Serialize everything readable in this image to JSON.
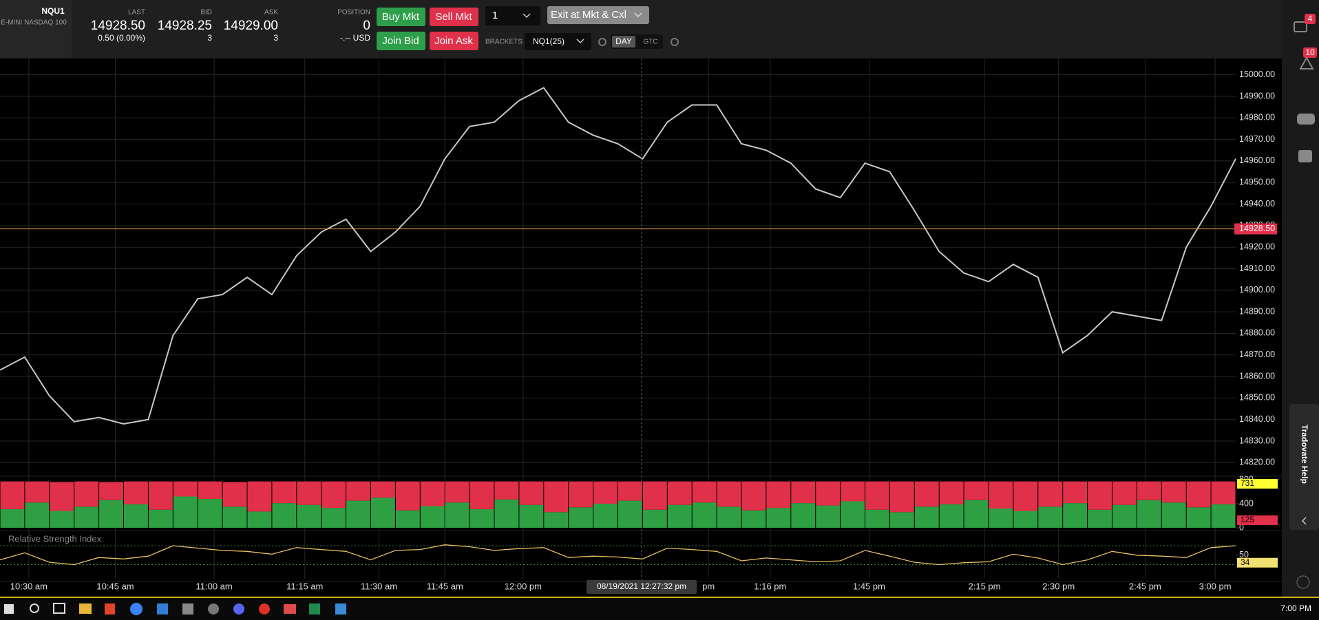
{
  "toolbar": {
    "symbol": "NQU1",
    "description": "E-MINI NASDAQ 100",
    "last_label": "LAST",
    "last": "14928.50",
    "change": "0.50 (0.00%)",
    "bid_label": "BID",
    "bid": "14928.25",
    "bid_size": "3",
    "ask_label": "ASK",
    "ask": "14929.00",
    "ask_size": "3",
    "position_label": "POSITION",
    "position": "0",
    "position_pnl": "-.-- USD",
    "buy_mkt": "Buy Mkt",
    "sell_mkt": "Sell Mkt",
    "join_bid": "Join Bid",
    "join_ask": "Join Ask",
    "quantity": "1",
    "exit": "Exit at Mkt & Cxl",
    "brackets_label": "BRACKETS",
    "brackets": "NQ1(25)",
    "day": "DAY",
    "gtc": "GTC"
  },
  "sidebar": {
    "messages_badge": "4",
    "alerts_badge": "10",
    "help": "Tradovate Help"
  },
  "crosshair_time": "08/19/2021 12:27:32 pm",
  "taskbar": {
    "clock": "7:00 PM"
  },
  "chart_data": [
    {
      "type": "line",
      "color": "#c8c8c8",
      "grid": true,
      "x": [
        0,
        6,
        12,
        18,
        24,
        30,
        36,
        42,
        48,
        54,
        60,
        66,
        72,
        78,
        84,
        90,
        96,
        102,
        108,
        114,
        120,
        126,
        132,
        138,
        144,
        150,
        156,
        162,
        168,
        174,
        180,
        186,
        192,
        198,
        204,
        210,
        216,
        222,
        228,
        234,
        240,
        246,
        252,
        258,
        264,
        270,
        276,
        282,
        288,
        294,
        300
      ],
      "values": [
        14863,
        14869,
        14851,
        14839,
        14841,
        14838,
        14840,
        14879,
        14896,
        14898,
        14906,
        14898,
        14916,
        14927,
        14933,
        14918,
        14927,
        14939,
        14961,
        14976,
        14978,
        14988,
        14994,
        14978,
        14972,
        14968,
        14961,
        14978,
        14986,
        14986,
        14968,
        14965,
        14959,
        14947,
        14943,
        14959,
        14955,
        14937,
        14918,
        14908,
        14904,
        14912,
        14906,
        14871,
        14879,
        14890,
        14888,
        14886,
        14920,
        14939,
        14961
      ],
      "xlim": [
        0,
        300
      ],
      "xticks": [
        {
          "value": 7,
          "label": "10:30 am"
        },
        {
          "value": 28,
          "label": "10:45 am"
        },
        {
          "value": 52,
          "label": "11:00 am"
        },
        {
          "value": 74,
          "label": "11:15 am"
        },
        {
          "value": 92,
          "label": "11:30 am"
        },
        {
          "value": 108,
          "label": "11:45 am"
        },
        {
          "value": 127,
          "label": "12:00 pm"
        },
        {
          "value": 172,
          "label": "pm"
        },
        {
          "value": 187,
          "label": "1:16 pm"
        },
        {
          "value": 211,
          "label": "1:45 pm"
        },
        {
          "value": 239,
          "label": "2:15 pm"
        },
        {
          "value": 257,
          "label": "2:30 pm"
        },
        {
          "value": 278,
          "label": "2:45 pm"
        },
        {
          "value": 295,
          "label": "3:00 pm"
        }
      ],
      "ylim": [
        14815,
        15006.6
      ],
      "yticks": [
        {
          "value": 14820,
          "label": "14820.00"
        },
        {
          "value": 14830,
          "label": "14830.00"
        },
        {
          "value": 14840,
          "label": "14840.00"
        },
        {
          "value": 14850,
          "label": "14850.00"
        },
        {
          "value": 14860,
          "label": "14860.00"
        },
        {
          "value": 14870,
          "label": "14870.00"
        },
        {
          "value": 14880,
          "label": "14880.00"
        },
        {
          "value": 14890,
          "label": "14890.00"
        },
        {
          "value": 14900,
          "label": "14900.00"
        },
        {
          "value": 14910,
          "label": "14910.00"
        },
        {
          "value": 14920,
          "label": "14920.00"
        },
        {
          "value": 14930,
          "label": "14930.00"
        },
        {
          "value": 14940,
          "label": "14940.00"
        },
        {
          "value": 14950,
          "label": "14950.00"
        },
        {
          "value": 14960,
          "label": "14960.00"
        },
        {
          "value": 14970,
          "label": "14970.00"
        },
        {
          "value": 14980,
          "label": "14980.00"
        },
        {
          "value": 14990,
          "label": "14990.00"
        },
        {
          "value": 15000,
          "label": "15000.00"
        }
      ],
      "last_price": {
        "value": 14928.5,
        "label": "14928.50",
        "color": "#e8a040"
      }
    },
    {
      "type": "bar",
      "stacked": true,
      "series": [
        {
          "color": "#2ea043",
          "values": [
            310,
            420,
            280,
            350,
            460,
            390,
            300,
            520,
            480,
            350,
            270,
            410,
            380,
            330,
            450,
            500,
            290,
            360,
            420,
            310,
            470,
            380,
            260,
            340,
            400,
            450,
            300,
            380,
            420,
            350,
            290,
            330,
            410,
            370,
            440,
            300,
            260,
            350,
            390,
            460,
            320,
            280,
            350,
            410,
            300,
            380,
            460,
            420,
            340,
            390
          ]
        },
        {
          "color": "#e0304a",
          "values": [
            460,
            350,
            480,
            420,
            300,
            380,
            470,
            250,
            290,
            410,
            500,
            360,
            390,
            440,
            320,
            270,
            480,
            410,
            350,
            460,
            300,
            390,
            510,
            430,
            370,
            320,
            470,
            390,
            350,
            420,
            480,
            440,
            360,
            400,
            330,
            470,
            510,
            420,
            380,
            310,
            450,
            490,
            420,
            360,
            470,
            390,
            310,
            350,
            430,
            380
          ]
        }
      ],
      "ylim": [
        0,
        800
      ],
      "yticks": [
        0,
        400,
        800
      ],
      "value_markers": [
        {
          "value": 731,
          "color": "#ffff33"
        },
        {
          "value": 125,
          "color": "#e0304a"
        }
      ]
    },
    {
      "type": "line",
      "title": "Relative Strength Index",
      "color": "#e8c060",
      "values": [
        40,
        55,
        35,
        30,
        45,
        42,
        48,
        70,
        65,
        60,
        58,
        52,
        66,
        62,
        58,
        40,
        60,
        62,
        72,
        68,
        60,
        64,
        66,
        45,
        48,
        46,
        42,
        65,
        62,
        58,
        38,
        44,
        40,
        36,
        38,
        60,
        48,
        35,
        30,
        34,
        36,
        52,
        44,
        30,
        40,
        58,
        50,
        48,
        45,
        66,
        70
      ],
      "ylim": [
        0,
        95
      ],
      "yticks": [
        50
      ],
      "levels": [
        30,
        70
      ],
      "value_markers": [
        {
          "value": 34,
          "color": "#f2e070"
        }
      ]
    }
  ]
}
